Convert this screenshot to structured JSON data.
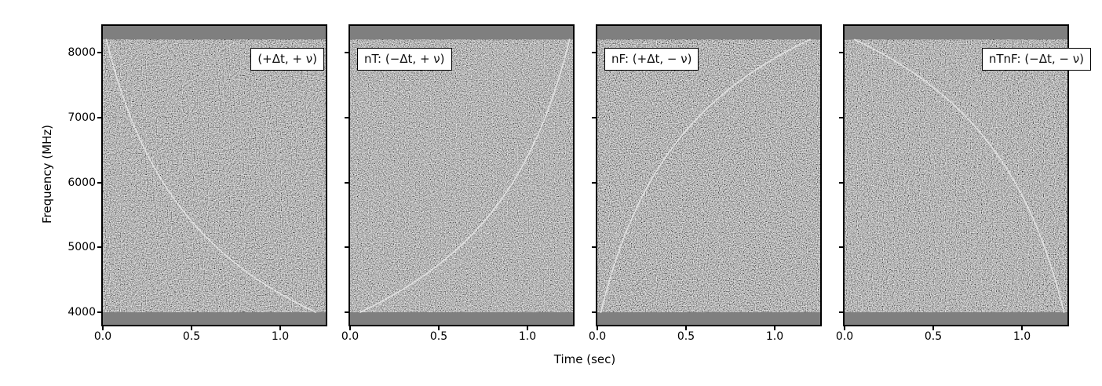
{
  "chart_data": {
    "type": "heatmap",
    "title": "",
    "xlabel": "Time (sec)",
    "ylabel": "Frequency (MHz)",
    "x_ticks": [
      0.0,
      0.5,
      1.0
    ],
    "x_tick_labels": [
      "0.0",
      "0.5",
      "1.0"
    ],
    "x_range": [
      0.0,
      1.26
    ],
    "y_ticks": [
      8000,
      7000,
      6000,
      5000,
      4000
    ],
    "y_range": [
      3800,
      8410
    ],
    "grid": false,
    "noise_band_mhz": [
      4000,
      8200
    ],
    "pulse_model": {
      "kind": "dispersed chirp in gaussian noise, delay proportional to frequency^-2",
      "t_start_sec": 0.02,
      "t_end_sec": 1.2,
      "f_start_mhz": 8200,
      "f_end_mhz": 4000
    },
    "panels": [
      {
        "label": "(+Δt, + ν)",
        "label_position": "top-right",
        "time_flip": false,
        "freq_flip": false,
        "sweep": "8200→4000 MHz, descending"
      },
      {
        "label": "nT: (−Δt, + ν)",
        "label_position": "top-left",
        "time_flip": true,
        "freq_flip": false,
        "sweep": "4000→8200 MHz, time-reversed"
      },
      {
        "label": "nF: (+Δt, − ν)",
        "label_position": "top-left",
        "time_flip": false,
        "freq_flip": true,
        "sweep": "4000→8200 MHz, frequency-flipped"
      },
      {
        "label": "nTnF: (−Δt, − ν)",
        "label_position": "top-right",
        "time_flip": true,
        "freq_flip": true,
        "sweep": "8200→4000 MHz, time- and frequency-flipped"
      }
    ],
    "colors": {
      "background": "#ffffff",
      "band": "#7f7f7f",
      "noise_mid": "#7a7a7a",
      "curve": "#e6e6e6",
      "text": "#000000",
      "spine": "#000000"
    }
  }
}
